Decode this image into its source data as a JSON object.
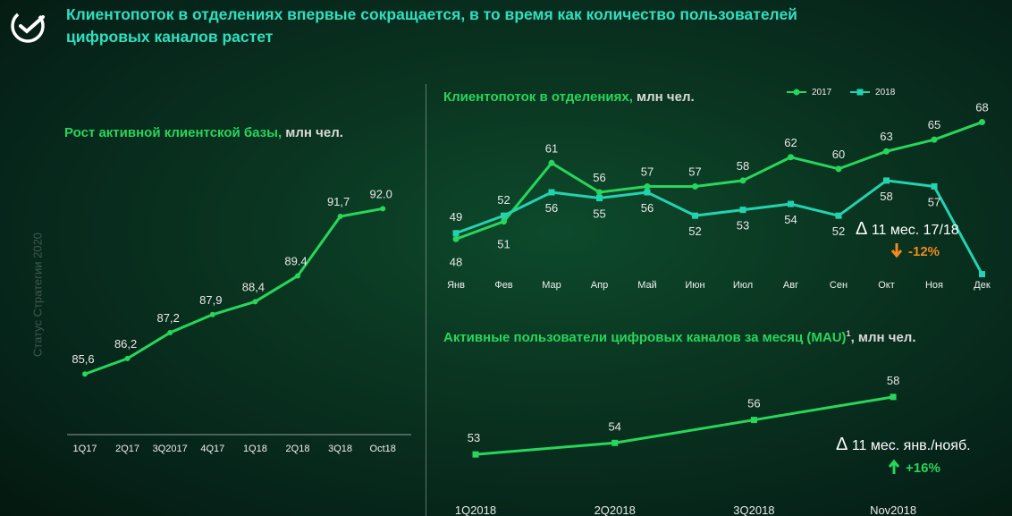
{
  "header": {
    "title": "Клиентопоток в отделениях впервые сокращается, в то время как количество пользователей цифровых каналов растет"
  },
  "side_caption": "Статус Стратегии 2020",
  "colors": {
    "green": "#27d65a",
    "teal": "#22d3b0",
    "orange": "#f08a1c"
  },
  "left_panel": {
    "title_accent": "Рост активной клиентской базы,",
    "title_unit": " млн чел."
  },
  "right_panel": {
    "title_accent": "Клиентопоток в отделениях,",
    "title_unit": " млн чел.",
    "legend": [
      "2017",
      "2018"
    ],
    "delta_label": "11 мес. 17/18",
    "delta_change": "-12%"
  },
  "mau_panel": {
    "title_accent": "Активные пользователи цифровых каналов за месяц (MAU)",
    "title_sup": "1",
    "title_unit": ", млн чел.",
    "delta_label": "11 мес. янв./нояб.",
    "delta_change": "+16%"
  },
  "chart_data": [
    {
      "type": "line",
      "categories": [
        "1Q17",
        "2Q17",
        "3Q2017",
        "4Q17",
        "1Q18",
        "2Q18",
        "3Q18",
        "Oct18"
      ],
      "series": [
        {
          "values": [
            85.6,
            86.2,
            87.2,
            87.9,
            88.4,
            89.4,
            91.7,
            92.0
          ],
          "labels": [
            "85,6",
            "86,2",
            "87,2",
            "87,9",
            "88,4",
            "89.4",
            "91,7",
            "92.0"
          ]
        }
      ],
      "ylim": [
        84.5,
        93.5
      ]
    },
    {
      "type": "line",
      "categories": [
        "Янв",
        "Фев",
        "Мар",
        "Апр",
        "Май",
        "Июн",
        "Июл",
        "Авг",
        "Сен",
        "Окт",
        "Ноя",
        "Дек"
      ],
      "series": [
        {
          "name": "2017",
          "values": [
            48,
            51,
            61,
            56,
            57,
            57,
            58,
            62,
            60,
            63,
            65,
            68
          ]
        },
        {
          "name": "2018",
          "values": [
            49,
            52,
            56,
            55,
            56,
            52,
            53,
            54,
            52,
            58,
            57,
            42
          ]
        }
      ],
      "ylim": [
        43,
        69
      ]
    },
    {
      "type": "line",
      "categories": [
        "1Q2018",
        "2Q2018",
        "3Q2018",
        "Nov2018"
      ],
      "series": [
        {
          "values": [
            53,
            54,
            56,
            58
          ]
        }
      ],
      "ylim": [
        52,
        59
      ]
    }
  ]
}
